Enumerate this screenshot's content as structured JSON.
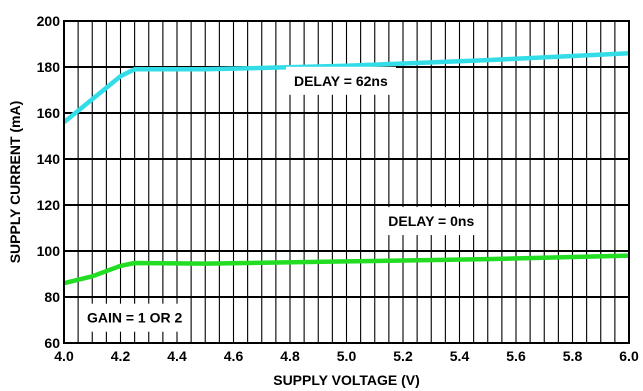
{
  "chart_data": {
    "type": "line",
    "xlabel": "SUPPLY VOLTAGE (V)",
    "ylabel": "SUPPLY CURRENT (mA)",
    "xlim": [
      4.0,
      6.0
    ],
    "ylim": [
      60,
      200
    ],
    "x_ticks": [
      "4.0",
      "4.2",
      "4.4",
      "4.6",
      "4.8",
      "5.0",
      "5.2",
      "5.4",
      "5.6",
      "5.8",
      "6.0"
    ],
    "y_ticks": [
      "60",
      "80",
      "100",
      "120",
      "140",
      "160",
      "180",
      "200"
    ],
    "grid": true,
    "x_minor_step": 0.05,
    "y_minor_step": 20,
    "series": [
      {
        "name": "DELAY = 62ns",
        "color": "#33dde8",
        "points": [
          [
            4.0,
            156
          ],
          [
            4.1,
            166
          ],
          [
            4.2,
            176
          ],
          [
            4.25,
            179
          ],
          [
            4.5,
            179
          ],
          [
            5.0,
            180.5
          ],
          [
            5.5,
            183
          ],
          [
            6.0,
            186
          ]
        ]
      },
      {
        "name": "DELAY = 0ns",
        "color": "#22dd22",
        "points": [
          [
            4.0,
            86
          ],
          [
            4.1,
            89
          ],
          [
            4.2,
            93.5
          ],
          [
            4.25,
            94.8
          ],
          [
            4.5,
            94.5
          ],
          [
            5.0,
            95.5
          ],
          [
            5.5,
            96.5
          ],
          [
            6.0,
            98
          ]
        ]
      }
    ],
    "annotations": [
      {
        "text": "DELAY = 62ns",
        "x": 4.98,
        "y": 174
      },
      {
        "text": "DELAY = 0ns",
        "x": 5.3,
        "y": 113
      },
      {
        "text": "GAIN = 1 OR 2",
        "x": 4.25,
        "y": 71
      }
    ]
  }
}
